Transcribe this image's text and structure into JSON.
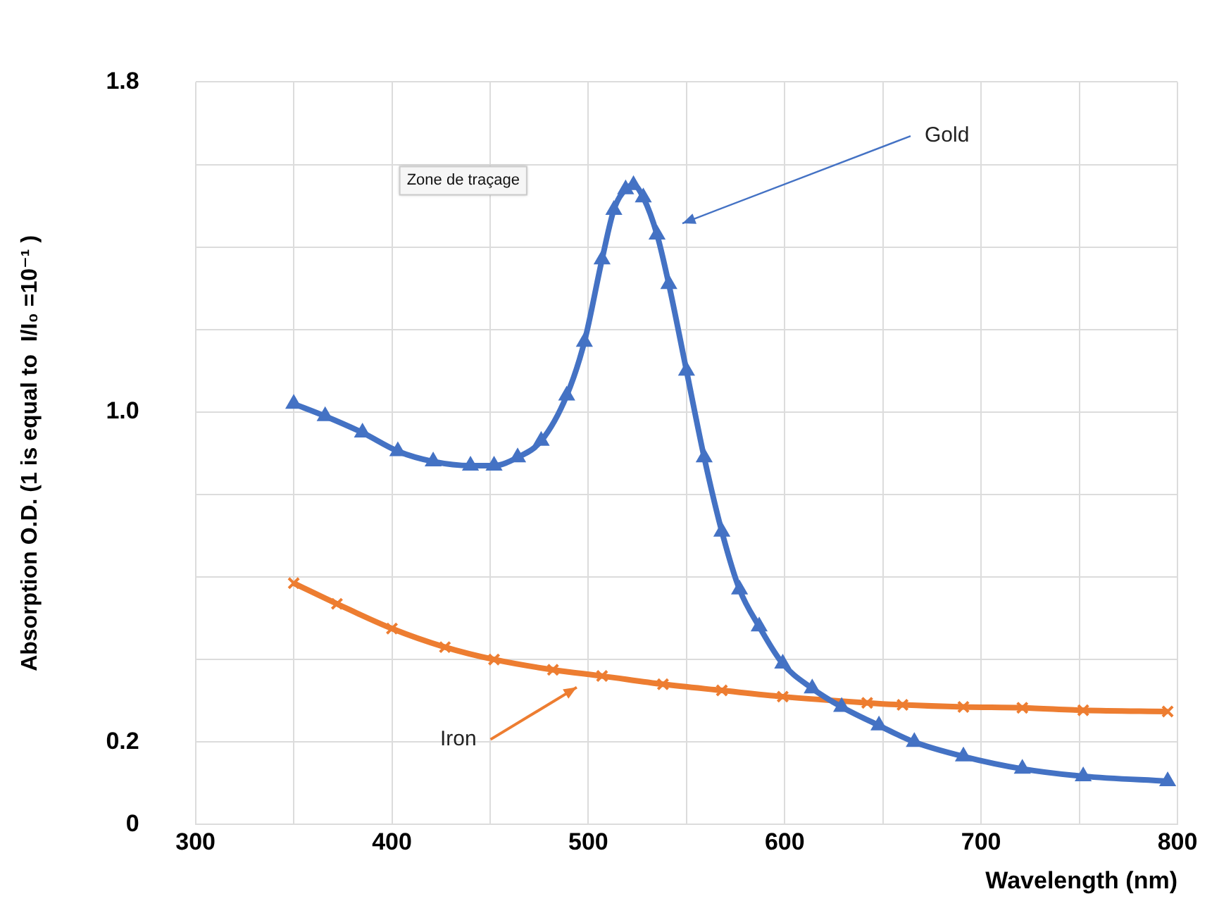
{
  "chart_data": {
    "type": "line",
    "xlabel": "Wavelength (nm)",
    "ylabel": "Absorption O.D. (1 is equal to  I/I₀ =10⁻¹ )",
    "annotations": [
      "Zone de traçage"
    ],
    "xlim": [
      300,
      800
    ],
    "xticks": [
      300,
      {
        "value": 350,
        "label": null
      },
      400,
      {
        "value": 450,
        "label": null
      },
      500,
      {
        "value": 550,
        "label": null
      },
      600,
      {
        "value": 650,
        "label": null
      },
      700,
      {
        "value": 750,
        "label": null
      },
      800
    ],
    "ylim": [
      0,
      1.8
    ],
    "yticks": [
      0,
      0.2,
      {
        "value": 0.4,
        "label": null
      },
      {
        "value": 0.6,
        "label": null
      },
      {
        "value": 0.8,
        "label": null
      },
      {
        "value": 1.0,
        "label": "1.0"
      },
      {
        "value": 1.2,
        "label": null
      },
      {
        "value": 1.4,
        "label": null
      },
      {
        "value": 1.6,
        "label": null
      },
      1.8
    ],
    "grid": true,
    "legend": false,
    "series": [
      {
        "name": "Gold",
        "color": "#4472c4",
        "marker": "triangle",
        "x": [
          350,
          366,
          385,
          403,
          421,
          440,
          452,
          464,
          476,
          489,
          498,
          507,
          513,
          519,
          523,
          528,
          535,
          541,
          550,
          559,
          568,
          577,
          587,
          599,
          614,
          629,
          648,
          666,
          691,
          721,
          752,
          795
        ],
        "values": [
          1.02,
          0.99,
          0.95,
          0.905,
          0.88,
          0.87,
          0.87,
          0.89,
          0.93,
          1.04,
          1.17,
          1.37,
          1.49,
          1.54,
          1.55,
          1.52,
          1.43,
          1.31,
          1.1,
          0.89,
          0.71,
          0.57,
          0.48,
          0.39,
          0.33,
          0.285,
          0.24,
          0.2,
          0.165,
          0.135,
          0.117,
          0.105
        ]
      },
      {
        "name": "Iron",
        "color": "#ed7d31",
        "marker": "cross",
        "x": [
          350,
          372,
          400,
          427,
          452,
          482,
          507,
          538,
          568,
          599,
          642,
          660,
          691,
          721,
          752,
          795
        ],
        "values": [
          0.585,
          0.535,
          0.475,
          0.43,
          0.4,
          0.375,
          0.36,
          0.34,
          0.325,
          0.31,
          0.295,
          0.29,
          0.285,
          0.283,
          0.277,
          0.274
        ]
      }
    ]
  }
}
